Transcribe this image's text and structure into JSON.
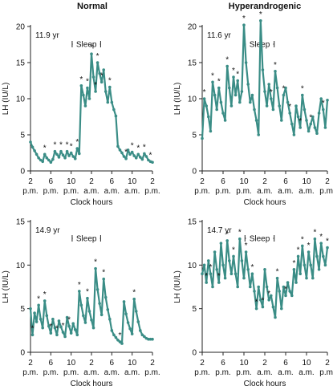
{
  "columns": [
    "Normal",
    "Hyperandrogenic"
  ],
  "x_tick_labels": [
    [
      "2",
      "p.m."
    ],
    [
      "6",
      "p.m."
    ],
    [
      "10",
      "p.m."
    ],
    [
      "2",
      "a.m."
    ],
    [
      "6",
      "a.m."
    ],
    [
      "10",
      "a.m."
    ],
    [
      "2",
      "p.m."
    ]
  ],
  "sleep_label": "Sleep",
  "xlabel": "Clock hours",
  "ylabel": "LH (IU/L)",
  "series_color": "#3a8d86",
  "chart_data": [
    {
      "type": "line",
      "panel": "top-left",
      "annotation": "11.9 yr",
      "xlabel": "Clock hours",
      "ylabel": "LH (IU/L)",
      "xlim": [
        0,
        24
      ],
      "ylim": [
        0,
        20
      ],
      "yticks": [
        0,
        5,
        10,
        15,
        20
      ],
      "xticks": [
        0,
        4,
        8,
        12,
        16,
        20,
        24
      ],
      "sleep": [
        8.2,
        13.8
      ],
      "x": [
        0,
        0.4,
        0.8,
        1.2,
        1.6,
        2.0,
        2.4,
        2.8,
        3.2,
        3.6,
        4.0,
        4.4,
        4.8,
        5.2,
        5.6,
        6.0,
        6.4,
        6.8,
        7.2,
        7.6,
        8.0,
        8.4,
        8.8,
        9.2,
        9.6,
        10.0,
        10.4,
        10.8,
        11.2,
        11.6,
        12.0,
        12.4,
        12.8,
        13.2,
        13.6,
        14.0,
        14.4,
        14.8,
        15.2,
        15.6,
        16.0,
        16.4,
        16.8,
        17.2,
        17.6,
        18.0,
        18.4,
        18.8,
        19.2,
        19.6,
        20.0,
        20.4,
        20.8,
        21.2,
        21.6,
        22.0,
        22.4,
        22.8,
        23.2,
        23.6,
        24.0
      ],
      "values": [
        4.0,
        3.3,
        2.8,
        2.3,
        1.8,
        1.5,
        1.3,
        2.3,
        1.8,
        1.5,
        1.2,
        1.6,
        2.7,
        2.3,
        1.9,
        2.7,
        2.2,
        1.8,
        2.7,
        2.1,
        2.5,
        2.0,
        1.7,
        3.1,
        2.4,
        11.8,
        10.5,
        9.0,
        11.5,
        10.0,
        16.2,
        13.0,
        11.0,
        15.0,
        13.5,
        12.3,
        14.0,
        11.0,
        9.5,
        11.6,
        9.5,
        8.5,
        7.6,
        3.4,
        2.9,
        2.5,
        2.0,
        1.7,
        2.9,
        2.3,
        2.6,
        2.1,
        1.8,
        2.3,
        1.9,
        1.6,
        2.4,
        2.0,
        1.5,
        1.3,
        1.2
      ],
      "peaks_marked": [
        2.8,
        4.8,
        6.0,
        7.2,
        8.0,
        9.2,
        10.0,
        11.2,
        12.0,
        12.8,
        13.2,
        14.0,
        15.6,
        18.8,
        20.0,
        21.2,
        22.4,
        23.6
      ]
    },
    {
      "type": "line",
      "panel": "top-right",
      "annotation": "11.6 yr",
      "xlabel": "Clock hours",
      "ylabel": "LH (IU/L)",
      "xlim": [
        0,
        24
      ],
      "ylim": [
        0,
        20
      ],
      "yticks": [
        0,
        5,
        10,
        15,
        20
      ],
      "xticks": [
        0,
        4,
        8,
        12,
        16,
        20,
        24
      ],
      "sleep": [
        8.2,
        13.8
      ],
      "x": [
        0,
        0.4,
        0.8,
        1.2,
        1.6,
        2.0,
        2.4,
        2.8,
        3.2,
        3.6,
        4.0,
        4.4,
        4.8,
        5.2,
        5.6,
        6.0,
        6.4,
        6.8,
        7.2,
        7.6,
        8.0,
        8.4,
        8.8,
        9.2,
        9.6,
        10.0,
        10.4,
        10.8,
        11.2,
        11.6,
        12.0,
        12.4,
        12.8,
        13.2,
        13.6,
        14.0,
        14.4,
        14.8,
        15.2,
        15.6,
        16.0,
        16.4,
        16.8,
        17.2,
        17.6,
        18.0,
        18.4,
        18.8,
        19.2,
        19.6,
        20.0,
        20.4,
        20.8,
        21.2,
        21.6,
        22.0,
        22.4,
        22.8,
        23.2,
        23.6,
        24.0
      ],
      "values": [
        4.5,
        10.0,
        9.0,
        7.5,
        5.5,
        12.3,
        10.5,
        8.5,
        11.5,
        9.5,
        8.0,
        7.0,
        14.5,
        11.5,
        9.0,
        13.0,
        10.5,
        12.5,
        9.5,
        11.0,
        20.2,
        15.0,
        12.0,
        9.5,
        10.5,
        8.5,
        7.0,
        5.0,
        20.8,
        14.0,
        11.0,
        9.0,
        12.0,
        10.0,
        8.5,
        13.8,
        11.5,
        9.0,
        7.0,
        10.5,
        11.5,
        9.5,
        8.0,
        6.5,
        5.0,
        9.0,
        7.5,
        6.0,
        10.5,
        8.5,
        7.0,
        5.5,
        6.5,
        7.5,
        6.0,
        5.2,
        8.0,
        10.0,
        8.5,
        6.0,
        9.8
      ],
      "peaks_marked": [
        0.4,
        2.0,
        3.2,
        4.8,
        6.0,
        6.8,
        8.0,
        11.2,
        13.2,
        14.0,
        15.6,
        16.8,
        18.8,
        19.2,
        20.8,
        23.2
      ]
    },
    {
      "type": "line",
      "panel": "bottom-left",
      "annotation": "14.9 yr",
      "xlabel": "Clock hours",
      "ylabel": "LH (IU/L)",
      "xlim": [
        0,
        24
      ],
      "ylim": [
        0,
        15
      ],
      "yticks": [
        0,
        5,
        10,
        15
      ],
      "xticks": [
        0,
        4,
        8,
        12,
        16,
        20,
        24
      ],
      "sleep": [
        8.2,
        13.8
      ],
      "x": [
        0,
        0.4,
        0.8,
        1.2,
        1.6,
        2.0,
        2.4,
        2.8,
        3.2,
        3.6,
        4.0,
        4.4,
        4.8,
        5.2,
        5.6,
        6.0,
        6.4,
        6.8,
        7.2,
        7.6,
        8.0,
        8.4,
        8.8,
        9.2,
        9.6,
        10.0,
        10.4,
        10.8,
        11.2,
        11.6,
        12.0,
        12.4,
        12.8,
        13.2,
        13.6,
        14.0,
        14.4,
        14.8,
        15.2,
        15.6,
        16.0,
        16.4,
        16.8,
        17.2,
        17.6,
        18.0,
        18.4,
        18.8,
        19.2,
        19.6,
        20.0,
        20.4,
        20.8,
        21.2,
        21.6,
        22.0,
        22.4,
        22.8,
        23.2,
        23.6,
        24.0
      ],
      "values": [
        5.0,
        2.0,
        4.5,
        3.5,
        5.4,
        3.8,
        2.8,
        5.9,
        4.2,
        3.0,
        2.2,
        3.8,
        2.8,
        2.0,
        3.6,
        2.9,
        2.3,
        1.8,
        4.0,
        3.0,
        2.2,
        3.3,
        2.6,
        2.0,
        7.0,
        5.4,
        4.2,
        3.4,
        6.2,
        4.7,
        3.7,
        2.8,
        9.6,
        7.2,
        5.6,
        4.3,
        8.4,
        6.3,
        4.9,
        3.8,
        2.5,
        2.0,
        1.7,
        1.4,
        1.2,
        1.0,
        5.8,
        4.4,
        3.4,
        2.7,
        2.1,
        6.1,
        4.7,
        3.5,
        2.5,
        2.0,
        1.8,
        1.6,
        1.5,
        1.5,
        1.5
      ],
      "peaks_marked": [
        0.4,
        1.6,
        2.8,
        4.0,
        5.2,
        6.4,
        7.6,
        9.6,
        11.2,
        12.8,
        14.4,
        17.6,
        20.4
      ]
    },
    {
      "type": "line",
      "panel": "bottom-right",
      "annotation": "14.7 yr",
      "xlabel": "Clock hours",
      "ylabel": "LH (IU/L)",
      "xlim": [
        0,
        24
      ],
      "ylim": [
        0,
        15
      ],
      "yticks": [
        0,
        5,
        10,
        15
      ],
      "xticks": [
        0,
        4,
        8,
        12,
        16,
        20,
        24
      ],
      "sleep": [
        8.2,
        13.8
      ],
      "x": [
        0,
        0.4,
        0.8,
        1.2,
        1.6,
        2.0,
        2.4,
        2.8,
        3.2,
        3.6,
        4.0,
        4.4,
        4.8,
        5.2,
        5.6,
        6.0,
        6.4,
        6.8,
        7.2,
        7.6,
        8.0,
        8.4,
        8.8,
        9.2,
        9.6,
        10.0,
        10.4,
        10.8,
        11.2,
        11.6,
        12.0,
        12.4,
        12.8,
        13.2,
        13.6,
        14.0,
        14.4,
        14.8,
        15.2,
        15.6,
        16.0,
        16.4,
        16.8,
        17.2,
        17.6,
        18.0,
        18.4,
        18.8,
        19.2,
        19.6,
        20.0,
        20.4,
        20.8,
        21.2,
        21.6,
        22.0,
        22.4,
        22.8,
        23.2,
        23.6,
        24.0
      ],
      "values": [
        9.0,
        10.0,
        8.0,
        10.5,
        9.0,
        7.5,
        11.5,
        9.5,
        8.0,
        12.5,
        10.0,
        8.5,
        12.8,
        10.5,
        9.0,
        11.0,
        9.0,
        7.5,
        13.0,
        10.5,
        8.5,
        11.5,
        9.5,
        7.5,
        9.0,
        7.0,
        5.0,
        7.5,
        6.0,
        5.2,
        9.5,
        7.5,
        6.0,
        6.5,
        5.2,
        4.0,
        8.5,
        7.0,
        5.0,
        7.5,
        6.5,
        8.0,
        7.0,
        6.5,
        9.5,
        8.0,
        11.0,
        9.0,
        12.2,
        10.0,
        8.5,
        11.5,
        10.0,
        8.5,
        13.0,
        11.0,
        9.5,
        12.5,
        11.0,
        10.0,
        12.0
      ],
      "peaks_marked": [
        0.8,
        1.6,
        3.2,
        4.8,
        6.0,
        7.2,
        8.4,
        9.6,
        10.4,
        11.6,
        12.8,
        14.4,
        16.0,
        17.6,
        18.4,
        19.2,
        20.4,
        21.6,
        22.8,
        24.0
      ]
    }
  ]
}
